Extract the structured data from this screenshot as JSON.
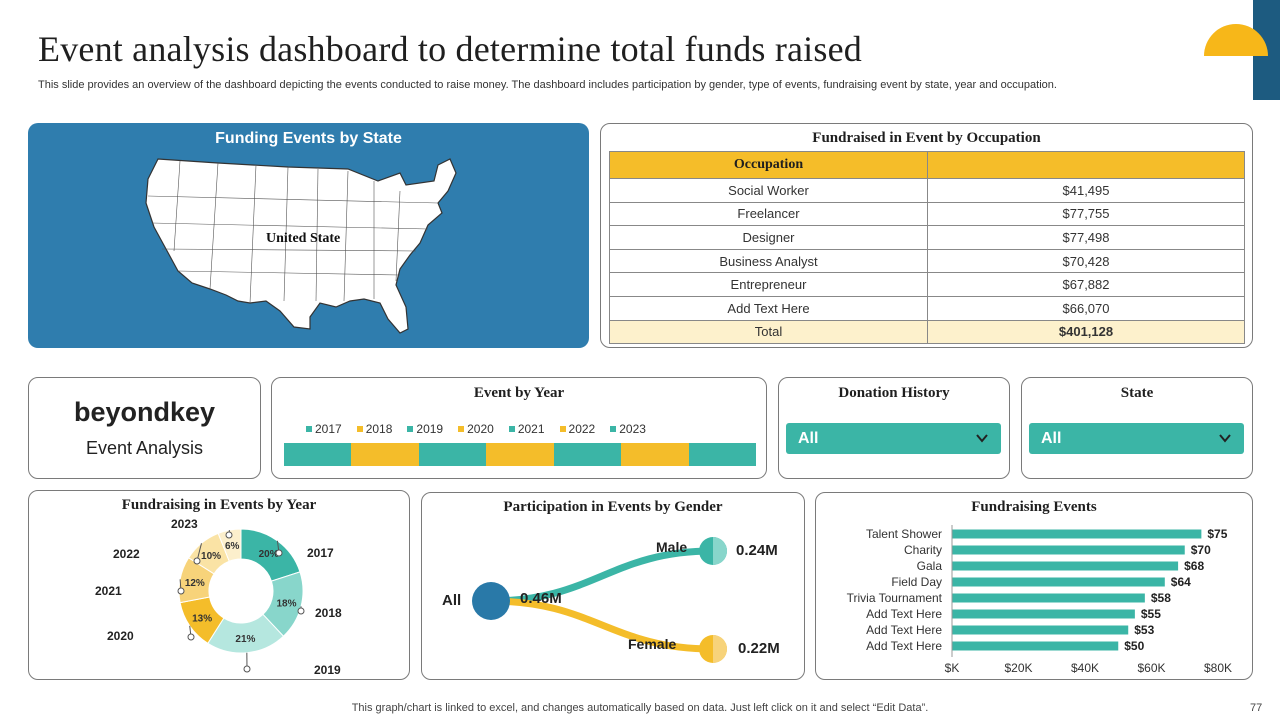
{
  "header": {
    "title": "Event analysis  dashboard to determine total funds raised",
    "subtitle": "This slide provides an overview of the dashboard depicting the events conducted to raise money. The dashboard includes participation by gender, type of events, fundraising event by state, year and occupation."
  },
  "map": {
    "title": "Funding Events by State",
    "label": "United State"
  },
  "occupation": {
    "title": "Fundraised  in Event by Occupation",
    "header": [
      "Occupation",
      ""
    ],
    "rows": [
      [
        "Social Worker",
        "$41,495"
      ],
      [
        "Freelancer",
        "$77,755"
      ],
      [
        "Designer",
        "$77,498"
      ],
      [
        "Business Analyst",
        "$70,428"
      ],
      [
        "Entrepreneur",
        "$67,882"
      ],
      [
        "Add Text Here",
        "$66,070"
      ]
    ],
    "total": [
      "Total",
      "$401,128"
    ]
  },
  "brand": {
    "name": "beyondkey",
    "subtitle": "Event Analysis"
  },
  "event_by_year": {
    "title": "Event by Year",
    "years": [
      "2017",
      "2018",
      "2019",
      "2020",
      "2021",
      "2022",
      "2023"
    ]
  },
  "donation_history": {
    "title": "Donation History",
    "value": "All"
  },
  "state_filter": {
    "title": "State",
    "value": "All"
  },
  "gender": {
    "title": "Participation  in Events by Gender",
    "all_label": "All",
    "total": "0.46M",
    "male_label": "Male",
    "male_value": "0.24M",
    "female_label": "Female",
    "female_value": "0.22M"
  },
  "colors": {
    "teal": "#3bb5a6",
    "gold": "#f4bd2a",
    "blue": "#2f7dae",
    "navy": "#1d5b80",
    "male": "#3bb5a6",
    "female": "#f4bd2a",
    "all": "#2979a8"
  },
  "footer": {
    "note": "This graph/chart is linked to excel,  and changes automatically based on data. Just left click on it and select “Edit Data”.",
    "page": "77"
  },
  "chart_data": [
    {
      "type": "pie",
      "title": "Fundraising  in Events by Year",
      "categories": [
        "2017",
        "2018",
        "2019",
        "2020",
        "2021",
        "2022",
        "2023"
      ],
      "values": [
        20,
        18,
        21,
        13,
        12,
        10,
        6
      ],
      "labels": [
        "20%",
        "18%",
        "21%",
        "13%",
        "12%",
        "10%",
        "6%"
      ],
      "colors": [
        "#3bb5a6",
        "#88d6cb",
        "#b5e7df",
        "#f4bd2a",
        "#f7d37a",
        "#fae3a5",
        "#fcefcc"
      ]
    },
    {
      "type": "bar",
      "title": "Fundraising  Events",
      "categories": [
        "Talent Shower",
        "Charity",
        "Gala",
        "Field Day",
        "Trivia Tournament",
        "Add Text Here",
        "Add Text Here",
        "Add Text Here"
      ],
      "values": [
        75,
        70,
        68,
        64,
        58,
        55,
        53,
        50
      ],
      "value_labels": [
        "$75",
        "$70",
        "$68",
        "$64",
        "$58",
        "$55",
        "$53",
        "$50"
      ],
      "xlim": [
        0,
        80
      ],
      "xticks": [
        "$K",
        "$20K",
        "$40K",
        "$60K",
        "$80K"
      ],
      "xtick_values": [
        0,
        20,
        40,
        60,
        80
      ]
    }
  ]
}
